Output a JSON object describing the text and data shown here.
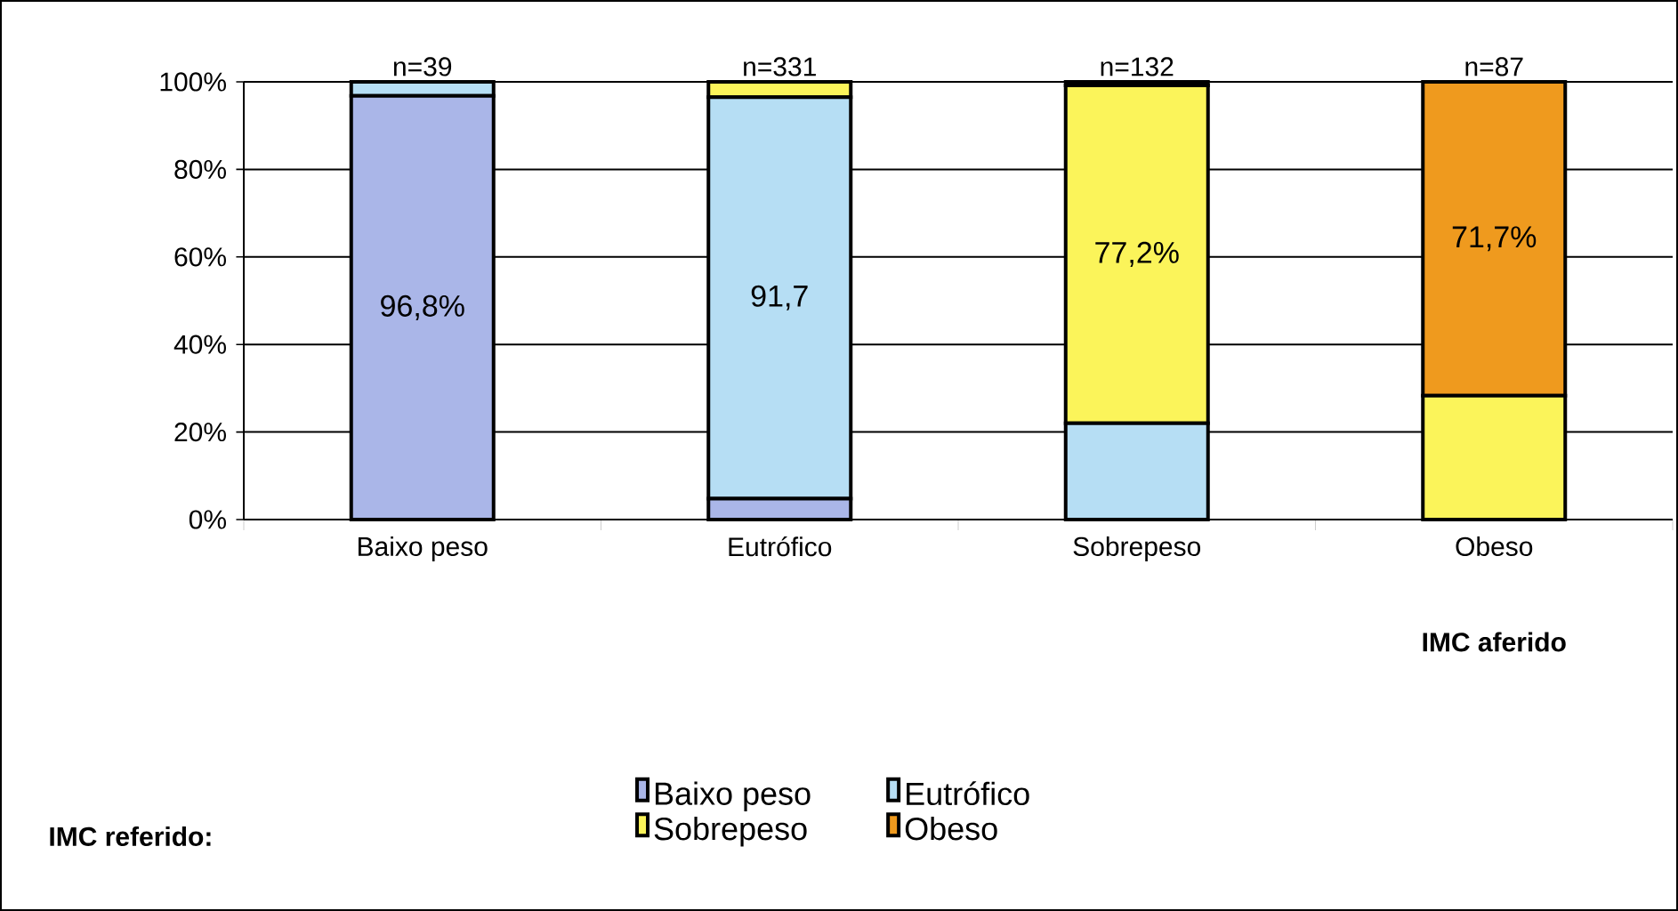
{
  "chart_data": {
    "type": "bar",
    "stacked": true,
    "categories": [
      "Baixo peso",
      "Eutrófico",
      "Sobrepeso",
      "Obeso"
    ],
    "xlabel": "IMC aferido",
    "legend_title": "IMC referido:",
    "series": [
      {
        "name": "Baixo peso",
        "color": "#aab6e8",
        "values": [
          96.8,
          4.8,
          0,
          0
        ],
        "value_labels": [
          "96,8%",
          null,
          null,
          null
        ]
      },
      {
        "name": "Eutrófico",
        "color": "#b6def4",
        "values": [
          3.2,
          91.7,
          22,
          0
        ],
        "value_labels": [
          null,
          "91,7",
          null,
          null
        ]
      },
      {
        "name": "Sobrepeso",
        "color": "#fbf45a",
        "values": [
          0,
          3.5,
          77.2,
          28.3
        ],
        "value_labels": [
          null,
          null,
          "77,2%",
          null
        ]
      },
      {
        "name": "Obeso",
        "color": "#ef9a1e",
        "values": [
          0,
          0,
          0.8,
          71.7
        ],
        "value_labels": [
          null,
          null,
          null,
          "71,7%"
        ]
      }
    ],
    "ylim": [
      0,
      100
    ],
    "yticks": [
      {
        "value": 0,
        "label": "0%"
      },
      {
        "value": 20,
        "label": "20%"
      },
      {
        "value": 40,
        "label": "40%"
      },
      {
        "value": 60,
        "label": "60%"
      },
      {
        "value": 80,
        "label": "80%"
      },
      {
        "value": 100,
        "label": "100%"
      }
    ],
    "grid": "y",
    "legend": "bottom",
    "annotations": [
      {
        "text": "n=39",
        "x": "Baixo peso",
        "y": 100
      },
      {
        "text": "n=331",
        "x": "Eutrófico",
        "y": 100
      },
      {
        "text": "n=132",
        "x": "Sobrepeso",
        "y": 100
      },
      {
        "text": "n=87",
        "x": "Obeso",
        "y": 100
      }
    ]
  }
}
